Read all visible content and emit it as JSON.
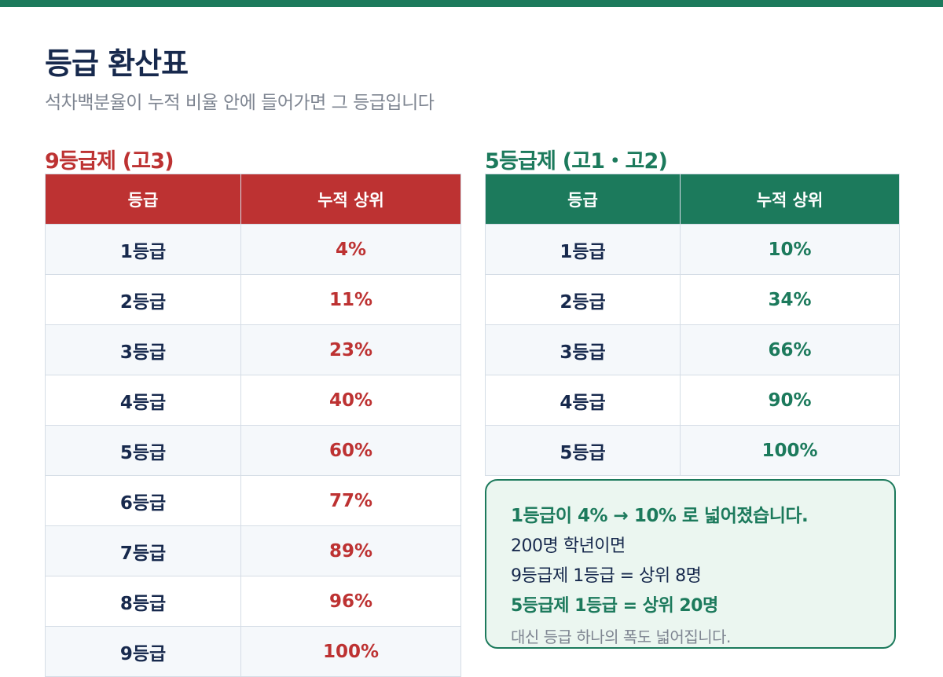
{
  "page": {
    "title": "등급 환산표",
    "subtitle": "석차백분율이 누적 비율 안에 들어가면 그 등급입니다"
  },
  "colors": {
    "brand_green": "#1c7a5c",
    "accent_red": "#bd3232",
    "navy_text": "#17294d",
    "muted_text": "#7e8591"
  },
  "nine_grade": {
    "heading": "9등급제 (고3)",
    "col_grade": "등급",
    "col_cum": "누적 상위",
    "rows": [
      {
        "grade": "1등급",
        "cum": "4%"
      },
      {
        "grade": "2등급",
        "cum": "11%"
      },
      {
        "grade": "3등급",
        "cum": "23%"
      },
      {
        "grade": "4등급",
        "cum": "40%"
      },
      {
        "grade": "5등급",
        "cum": "60%"
      },
      {
        "grade": "6등급",
        "cum": "77%"
      },
      {
        "grade": "7등급",
        "cum": "89%"
      },
      {
        "grade": "8등급",
        "cum": "96%"
      },
      {
        "grade": "9등급",
        "cum": "100%"
      }
    ]
  },
  "five_grade": {
    "heading": "5등급제 (고1・고2)",
    "col_grade": "등급",
    "col_cum": "누적 상위",
    "rows": [
      {
        "grade": "1등급",
        "cum": "10%"
      },
      {
        "grade": "2등급",
        "cum": "34%"
      },
      {
        "grade": "3등급",
        "cum": "66%"
      },
      {
        "grade": "4등급",
        "cum": "90%"
      },
      {
        "grade": "5등급",
        "cum": "100%"
      }
    ]
  },
  "note": {
    "headline": "1등급이 4% → 10% 로 넓어졌습니다.",
    "line1": "200명 학년이면",
    "line2": "9등급제 1등급 = 상위 8명",
    "line3": "5등급제 1등급 = 상위 20명",
    "footnote": "대신 등급 하나의 폭도 넓어집니다."
  }
}
